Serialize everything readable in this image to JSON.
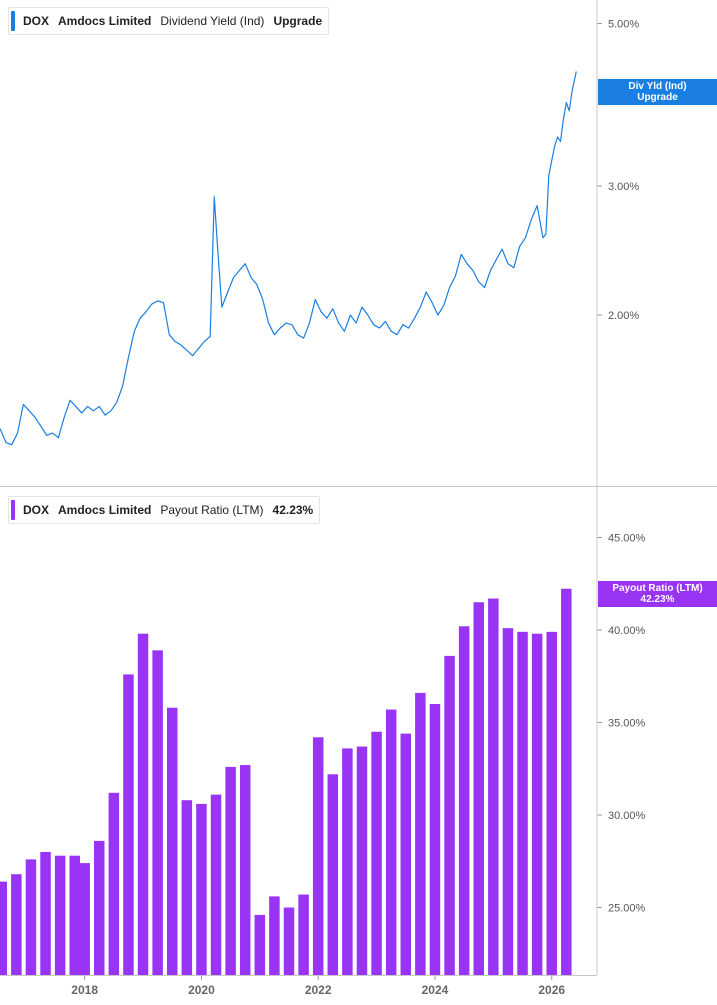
{
  "top_panel": {
    "ticker": "DOX",
    "company": "Amdocs Limited",
    "metric": "Dividend Yield (Ind)",
    "value": "Upgrade",
    "tag_line1": "Div Yld (Ind)",
    "tag_line2": "Upgrade",
    "color": "#1a7fe0"
  },
  "bottom_panel": {
    "ticker": "DOX",
    "company": "Amdocs Limited",
    "metric": "Payout Ratio (LTM)",
    "value": "42.23%",
    "tag_line1": "Payout Ratio (LTM)",
    "tag_line2": "42.23%",
    "color": "#9a34f5"
  },
  "chart_data": [
    {
      "type": "line",
      "series": [
        {
          "name": "Dividend Yield (Ind)"
        }
      ],
      "y_scale": "log",
      "y_ticks": [
        2.0,
        3.0,
        5.0
      ],
      "y_tick_labels": [
        "2.00%",
        "3.00%",
        "5.00%"
      ],
      "x_range": [
        2016.55,
        2026.45
      ],
      "points": [
        [
          2016.55,
          1.4
        ],
        [
          2016.65,
          1.34
        ],
        [
          2016.75,
          1.33
        ],
        [
          2016.85,
          1.38
        ],
        [
          2016.95,
          1.51
        ],
        [
          2017.05,
          1.48
        ],
        [
          2017.15,
          1.45
        ],
        [
          2017.25,
          1.41
        ],
        [
          2017.35,
          1.37
        ],
        [
          2017.45,
          1.38
        ],
        [
          2017.55,
          1.36
        ],
        [
          2017.65,
          1.45
        ],
        [
          2017.75,
          1.53
        ],
        [
          2017.85,
          1.5
        ],
        [
          2017.95,
          1.47
        ],
        [
          2018.05,
          1.5
        ],
        [
          2018.15,
          1.48
        ],
        [
          2018.25,
          1.5
        ],
        [
          2018.35,
          1.46
        ],
        [
          2018.45,
          1.48
        ],
        [
          2018.55,
          1.52
        ],
        [
          2018.65,
          1.6
        ],
        [
          2018.75,
          1.75
        ],
        [
          2018.85,
          1.9
        ],
        [
          2018.95,
          1.98
        ],
        [
          2019.05,
          2.02
        ],
        [
          2019.15,
          2.07
        ],
        [
          2019.25,
          2.09
        ],
        [
          2019.35,
          2.08
        ],
        [
          2019.45,
          1.88
        ],
        [
          2019.55,
          1.84
        ],
        [
          2019.65,
          1.82
        ],
        [
          2019.75,
          1.79
        ],
        [
          2019.85,
          1.76
        ],
        [
          2019.95,
          1.8
        ],
        [
          2020.05,
          1.84
        ],
        [
          2020.15,
          1.87
        ],
        [
          2020.22,
          2.9
        ],
        [
          2020.28,
          2.45
        ],
        [
          2020.35,
          2.05
        ],
        [
          2020.45,
          2.15
        ],
        [
          2020.55,
          2.25
        ],
        [
          2020.65,
          2.3
        ],
        [
          2020.75,
          2.35
        ],
        [
          2020.85,
          2.25
        ],
        [
          2020.95,
          2.2
        ],
        [
          2021.05,
          2.1
        ],
        [
          2021.15,
          1.95
        ],
        [
          2021.25,
          1.88
        ],
        [
          2021.35,
          1.92
        ],
        [
          2021.45,
          1.95
        ],
        [
          2021.55,
          1.94
        ],
        [
          2021.65,
          1.88
        ],
        [
          2021.75,
          1.86
        ],
        [
          2021.85,
          1.95
        ],
        [
          2021.95,
          2.1
        ],
        [
          2022.05,
          2.02
        ],
        [
          2022.15,
          1.98
        ],
        [
          2022.25,
          2.04
        ],
        [
          2022.35,
          1.95
        ],
        [
          2022.45,
          1.9
        ],
        [
          2022.55,
          2.0
        ],
        [
          2022.65,
          1.95
        ],
        [
          2022.75,
          2.05
        ],
        [
          2022.85,
          2.0
        ],
        [
          2022.95,
          1.94
        ],
        [
          2023.05,
          1.92
        ],
        [
          2023.15,
          1.96
        ],
        [
          2023.25,
          1.9
        ],
        [
          2023.35,
          1.88
        ],
        [
          2023.45,
          1.94
        ],
        [
          2023.55,
          1.92
        ],
        [
          2023.65,
          1.98
        ],
        [
          2023.75,
          2.05
        ],
        [
          2023.85,
          2.15
        ],
        [
          2023.95,
          2.08
        ],
        [
          2024.05,
          2.0
        ],
        [
          2024.15,
          2.06
        ],
        [
          2024.25,
          2.18
        ],
        [
          2024.35,
          2.26
        ],
        [
          2024.45,
          2.42
        ],
        [
          2024.55,
          2.35
        ],
        [
          2024.65,
          2.3
        ],
        [
          2024.75,
          2.22
        ],
        [
          2024.85,
          2.18
        ],
        [
          2024.95,
          2.3
        ],
        [
          2025.05,
          2.38
        ],
        [
          2025.15,
          2.46
        ],
        [
          2025.25,
          2.35
        ],
        [
          2025.35,
          2.32
        ],
        [
          2025.45,
          2.48
        ],
        [
          2025.55,
          2.55
        ],
        [
          2025.65,
          2.7
        ],
        [
          2025.75,
          2.82
        ],
        [
          2025.85,
          2.55
        ],
        [
          2025.9,
          2.58
        ],
        [
          2025.95,
          3.1
        ],
        [
          2026.0,
          3.25
        ],
        [
          2026.05,
          3.4
        ],
        [
          2026.1,
          3.5
        ],
        [
          2026.15,
          3.45
        ],
        [
          2026.2,
          3.7
        ],
        [
          2026.25,
          3.9
        ],
        [
          2026.3,
          3.8
        ],
        [
          2026.35,
          4.05
        ],
        [
          2026.42,
          4.3
        ]
      ]
    },
    {
      "type": "bar",
      "series": [
        {
          "name": "Payout Ratio (LTM)"
        }
      ],
      "y_ticks": [
        25,
        30,
        35,
        40,
        45
      ],
      "y_tick_labels": [
        "25.00%",
        "30.00%",
        "35.00%",
        "40.00%",
        "45.00%"
      ],
      "x_ticks": [
        2018,
        2020,
        2022,
        2024,
        2026
      ],
      "x_tick_labels": [
        "2018",
        "2020",
        "2022",
        "2024",
        "2026"
      ],
      "x_range": [
        2016.55,
        2026.45
      ],
      "x": [
        2016.58,
        2016.83,
        2017.08,
        2017.33,
        2017.58,
        2017.83,
        2018.0,
        2018.25,
        2018.5,
        2018.75,
        2019.0,
        2019.25,
        2019.5,
        2019.75,
        2020.0,
        2020.25,
        2020.5,
        2020.75,
        2021.0,
        2021.25,
        2021.5,
        2021.75,
        2022.0,
        2022.25,
        2022.5,
        2022.75,
        2023.0,
        2023.25,
        2023.5,
        2023.75,
        2024.0,
        2024.25,
        2024.5,
        2024.75,
        2025.0,
        2025.25,
        2025.5,
        2025.75,
        2026.0,
        2026.25
      ],
      "values": [
        26.4,
        26.8,
        27.6,
        28.0,
        27.8,
        27.8,
        27.4,
        28.6,
        31.2,
        37.6,
        39.8,
        38.9,
        35.8,
        30.8,
        30.6,
        31.1,
        32.6,
        32.7,
        24.6,
        25.6,
        25.0,
        25.7,
        34.2,
        32.2,
        33.6,
        33.7,
        34.5,
        35.7,
        34.4,
        36.6,
        36.0,
        38.6,
        40.2,
        41.5,
        41.7,
        40.1,
        39.9,
        39.8,
        39.9,
        42.23
      ]
    }
  ]
}
